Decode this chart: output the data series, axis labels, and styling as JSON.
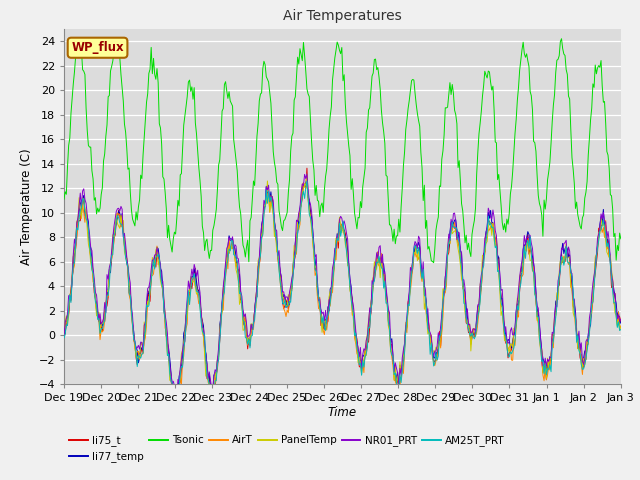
{
  "title": "Air Temperatures",
  "xlabel": "Time",
  "ylabel": "Air Temperature (C)",
  "ylim": [
    -4,
    25
  ],
  "yticks": [
    -4,
    -2,
    0,
    2,
    4,
    6,
    8,
    10,
    12,
    14,
    16,
    18,
    20,
    22,
    24
  ],
  "bg_color": "#dcdcdc",
  "fig_bg_color": "#f0f0f0",
  "wp_flux_label": "WP_flux",
  "wp_flux_bg": "#ffff99",
  "wp_flux_border": "#aa6600",
  "wp_flux_text": "#990000",
  "series_colors": {
    "li75_t": "#dd0000",
    "li77_temp": "#0000bb",
    "Tsonic": "#00dd00",
    "AirT": "#ff8800",
    "PanelTemp": "#cccc00",
    "NR01_PRT": "#8800cc",
    "AM25T_PRT": "#00bbbb"
  },
  "xtick_labels": [
    "Dec 19",
    "Dec 20",
    "Dec 21",
    "Dec 22",
    "Dec 23",
    "Dec 24",
    "Dec 25",
    "Dec 26",
    "Dec 27",
    "Dec 28",
    "Dec 29",
    "Dec 30",
    "Dec 31",
    "Jan 1",
    "Jan 2",
    "Jan 3"
  ],
  "seed": 42,
  "n_points": 480
}
